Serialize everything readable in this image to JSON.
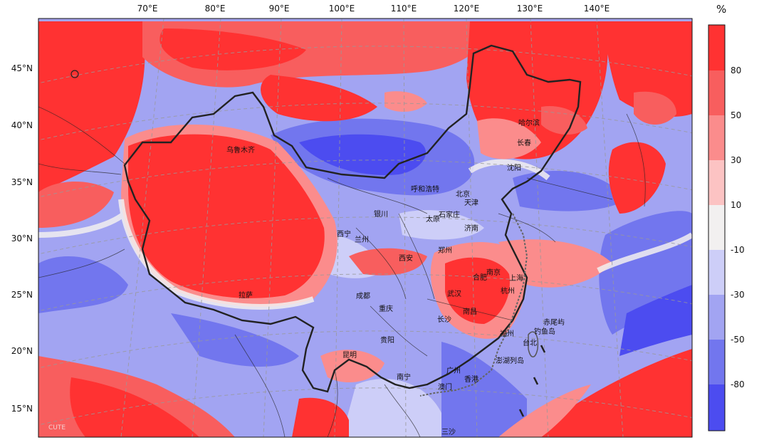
{
  "map": {
    "unit": "%",
    "watermark": "CUTE",
    "lon_labels": [
      "70°E",
      "80°E",
      "90°E",
      "100°E",
      "110°E",
      "120°E",
      "130°E",
      "140°E"
    ],
    "lat_labels": [
      "45°N",
      "40°N",
      "35°N",
      "30°N",
      "25°N",
      "20°N",
      "15°N"
    ],
    "legend_levels": [
      "80",
      "50",
      "30",
      "10",
      "-10",
      "-30",
      "-50",
      "-80"
    ],
    "colors": {
      "c1": "#ff3232",
      "c2": "#f85e5e",
      "c3": "#fb8c8c",
      "c4": "#fcc3c3",
      "c5": "#f2f0f0",
      "c6": "#cdcef8",
      "c7": "#a2a4f2",
      "c8": "#7276ee",
      "c9": "#4c4cf0"
    },
    "cities": [
      "乌鲁木齐",
      "哈尔滨",
      "长春",
      "沈阳",
      "呼和浩特",
      "北京",
      "天津",
      "银川",
      "太原",
      "石家庄",
      "西宁",
      "兰州",
      "济南",
      "郑州",
      "西安",
      "合肥",
      "南京",
      "上海",
      "杭州",
      "武汉",
      "成都",
      "拉萨",
      "重庆",
      "长沙",
      "南昌",
      "福州",
      "台北",
      "钓鱼岛",
      "赤尾屿",
      "贵阳",
      "昆明",
      "澎湖列岛",
      "南宁",
      "广州",
      "香港",
      "澳门",
      "三沙"
    ]
  }
}
